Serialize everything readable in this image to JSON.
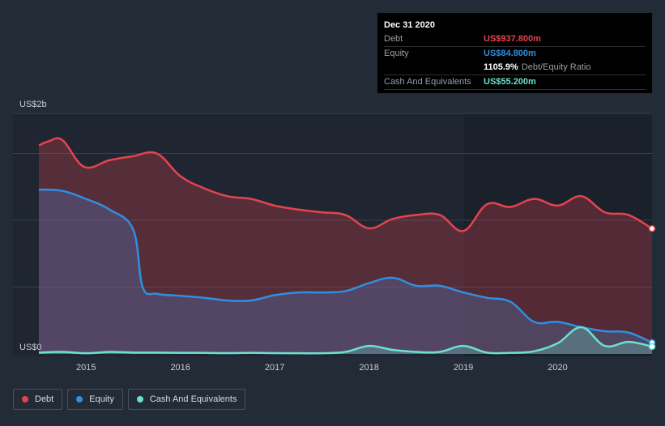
{
  "tooltip": {
    "date": "Dec 31 2020",
    "debt_label": "Debt",
    "debt_value": "US$937.800m",
    "equity_label": "Equity",
    "equity_value": "US$84.800m",
    "ratio_value": "1105.9%",
    "ratio_label": "Debt/Equity Ratio",
    "cash_label": "Cash And Equivalents",
    "cash_value": "US$55.200m"
  },
  "legend": [
    {
      "label": "Debt",
      "color": "#e5444e"
    },
    {
      "label": "Equity",
      "color": "#2f8fe0"
    },
    {
      "label": "Cash And Equivalents",
      "color": "#6ce0cf"
    }
  ],
  "colors": {
    "debt": "#e5444e",
    "equity": "#2f8fe0",
    "cash": "#6ce0cf"
  },
  "chart_data": {
    "type": "area",
    "title": "",
    "y_top_label": "US$2b",
    "y_bottom_label": "US$0",
    "ylim": [
      0,
      1800
    ],
    "xlim": [
      2014.5,
      2021.0
    ],
    "x_ticks": [
      {
        "x": 2015.0,
        "label": "2015"
      },
      {
        "x": 2016.0,
        "label": "2016"
      },
      {
        "x": 2017.0,
        "label": "2017"
      },
      {
        "x": 2018.0,
        "label": "2018"
      },
      {
        "x": 2019.0,
        "label": "2019"
      },
      {
        "x": 2020.0,
        "label": "2020"
      }
    ],
    "gridlines": [
      500,
      1000,
      1500
    ],
    "series": [
      {
        "name": "Debt",
        "color": "#e5444e",
        "x": [
          2014.5,
          2014.6,
          2014.75,
          2014.98,
          2015.25,
          2015.5,
          2015.75,
          2016.0,
          2016.25,
          2016.5,
          2016.75,
          2017.0,
          2017.25,
          2017.5,
          2017.75,
          2018.0,
          2018.25,
          2018.5,
          2018.75,
          2019.0,
          2019.25,
          2019.5,
          2019.75,
          2020.0,
          2020.25,
          2020.5,
          2020.75,
          2021.0
        ],
        "values": [
          1560,
          1590,
          1600,
          1400,
          1450,
          1480,
          1500,
          1330,
          1240,
          1180,
          1160,
          1110,
          1080,
          1060,
          1040,
          940,
          1010,
          1040,
          1040,
          920,
          1120,
          1100,
          1160,
          1110,
          1180,
          1060,
          1040,
          937.8
        ]
      },
      {
        "name": "Equity",
        "color": "#2f8fe0",
        "x": [
          2014.5,
          2014.75,
          2015.0,
          2015.25,
          2015.5,
          2015.6,
          2015.75,
          2016.0,
          2016.25,
          2016.5,
          2016.75,
          2017.0,
          2017.25,
          2017.5,
          2017.75,
          2018.0,
          2018.25,
          2018.5,
          2018.75,
          2019.0,
          2019.25,
          2019.5,
          2019.75,
          2020.0,
          2020.25,
          2020.5,
          2020.75,
          2021.0
        ],
        "values": [
          1230,
          1220,
          1160,
          1080,
          930,
          500,
          450,
          435,
          420,
          400,
          400,
          440,
          460,
          460,
          470,
          530,
          570,
          510,
          510,
          460,
          420,
          390,
          240,
          240,
          200,
          170,
          160,
          84.8
        ]
      },
      {
        "name": "Cash And Equivalents",
        "color": "#6ce0cf",
        "x": [
          2014.5,
          2014.75,
          2015.0,
          2015.25,
          2015.5,
          2015.75,
          2016.0,
          2016.25,
          2016.5,
          2016.75,
          2017.0,
          2017.25,
          2017.5,
          2017.75,
          2018.0,
          2018.25,
          2018.5,
          2018.75,
          2019.0,
          2019.25,
          2019.5,
          2019.75,
          2020.0,
          2020.25,
          2020.5,
          2020.75,
          2021.0
        ],
        "values": [
          10,
          15,
          5,
          15,
          10,
          10,
          8,
          8,
          6,
          8,
          6,
          5,
          5,
          15,
          60,
          30,
          15,
          15,
          60,
          10,
          8,
          20,
          80,
          200,
          60,
          90,
          55.2
        ]
      }
    ]
  }
}
